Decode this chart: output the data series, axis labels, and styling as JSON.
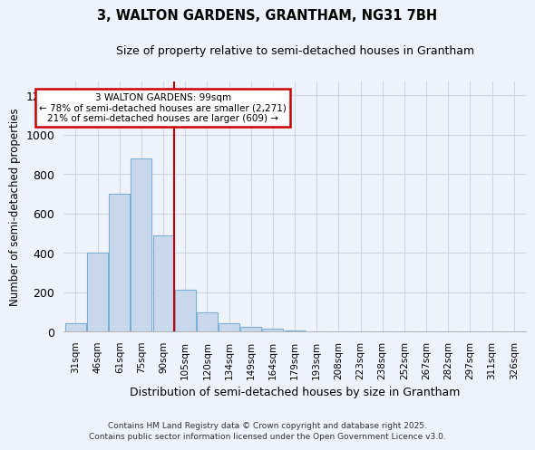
{
  "title": "3, WALTON GARDENS, GRANTHAM, NG31 7BH",
  "subtitle": "Size of property relative to semi-detached houses in Grantham",
  "xlabel": "Distribution of semi-detached houses by size in Grantham",
  "ylabel": "Number of semi-detached properties",
  "bar_labels": [
    "31sqm",
    "46sqm",
    "61sqm",
    "75sqm",
    "90sqm",
    "105sqm",
    "120sqm",
    "134sqm",
    "149sqm",
    "164sqm",
    "179sqm",
    "193sqm",
    "208sqm",
    "223sqm",
    "238sqm",
    "252sqm",
    "267sqm",
    "282sqm",
    "297sqm",
    "311sqm",
    "326sqm"
  ],
  "bar_values": [
    45,
    400,
    700,
    880,
    490,
    215,
    100,
    45,
    25,
    15,
    5,
    0,
    3,
    0,
    0,
    0,
    0,
    0,
    0,
    0,
    3
  ],
  "bar_color": "#c8d9ee",
  "bar_edge_color": "#7bafd4",
  "vline_color": "#cc0000",
  "annotation_title": "3 WALTON GARDENS: 99sqm",
  "annotation_line1": "← 78% of semi-detached houses are smaller (2,271)",
  "annotation_line2": "21% of semi-detached houses are larger (609) →",
  "annotation_box_color": "#ffffff",
  "annotation_box_edge": "#cc0000",
  "ylim": [
    0,
    1270
  ],
  "yticks": [
    0,
    200,
    400,
    600,
    800,
    1000,
    1200
  ],
  "footer_line1": "Contains HM Land Registry data © Crown copyright and database right 2025.",
  "footer_line2": "Contains public sector information licensed under the Open Government Licence v3.0.",
  "background_color": "#eef2fb",
  "grid_color": "#d0d8e8"
}
